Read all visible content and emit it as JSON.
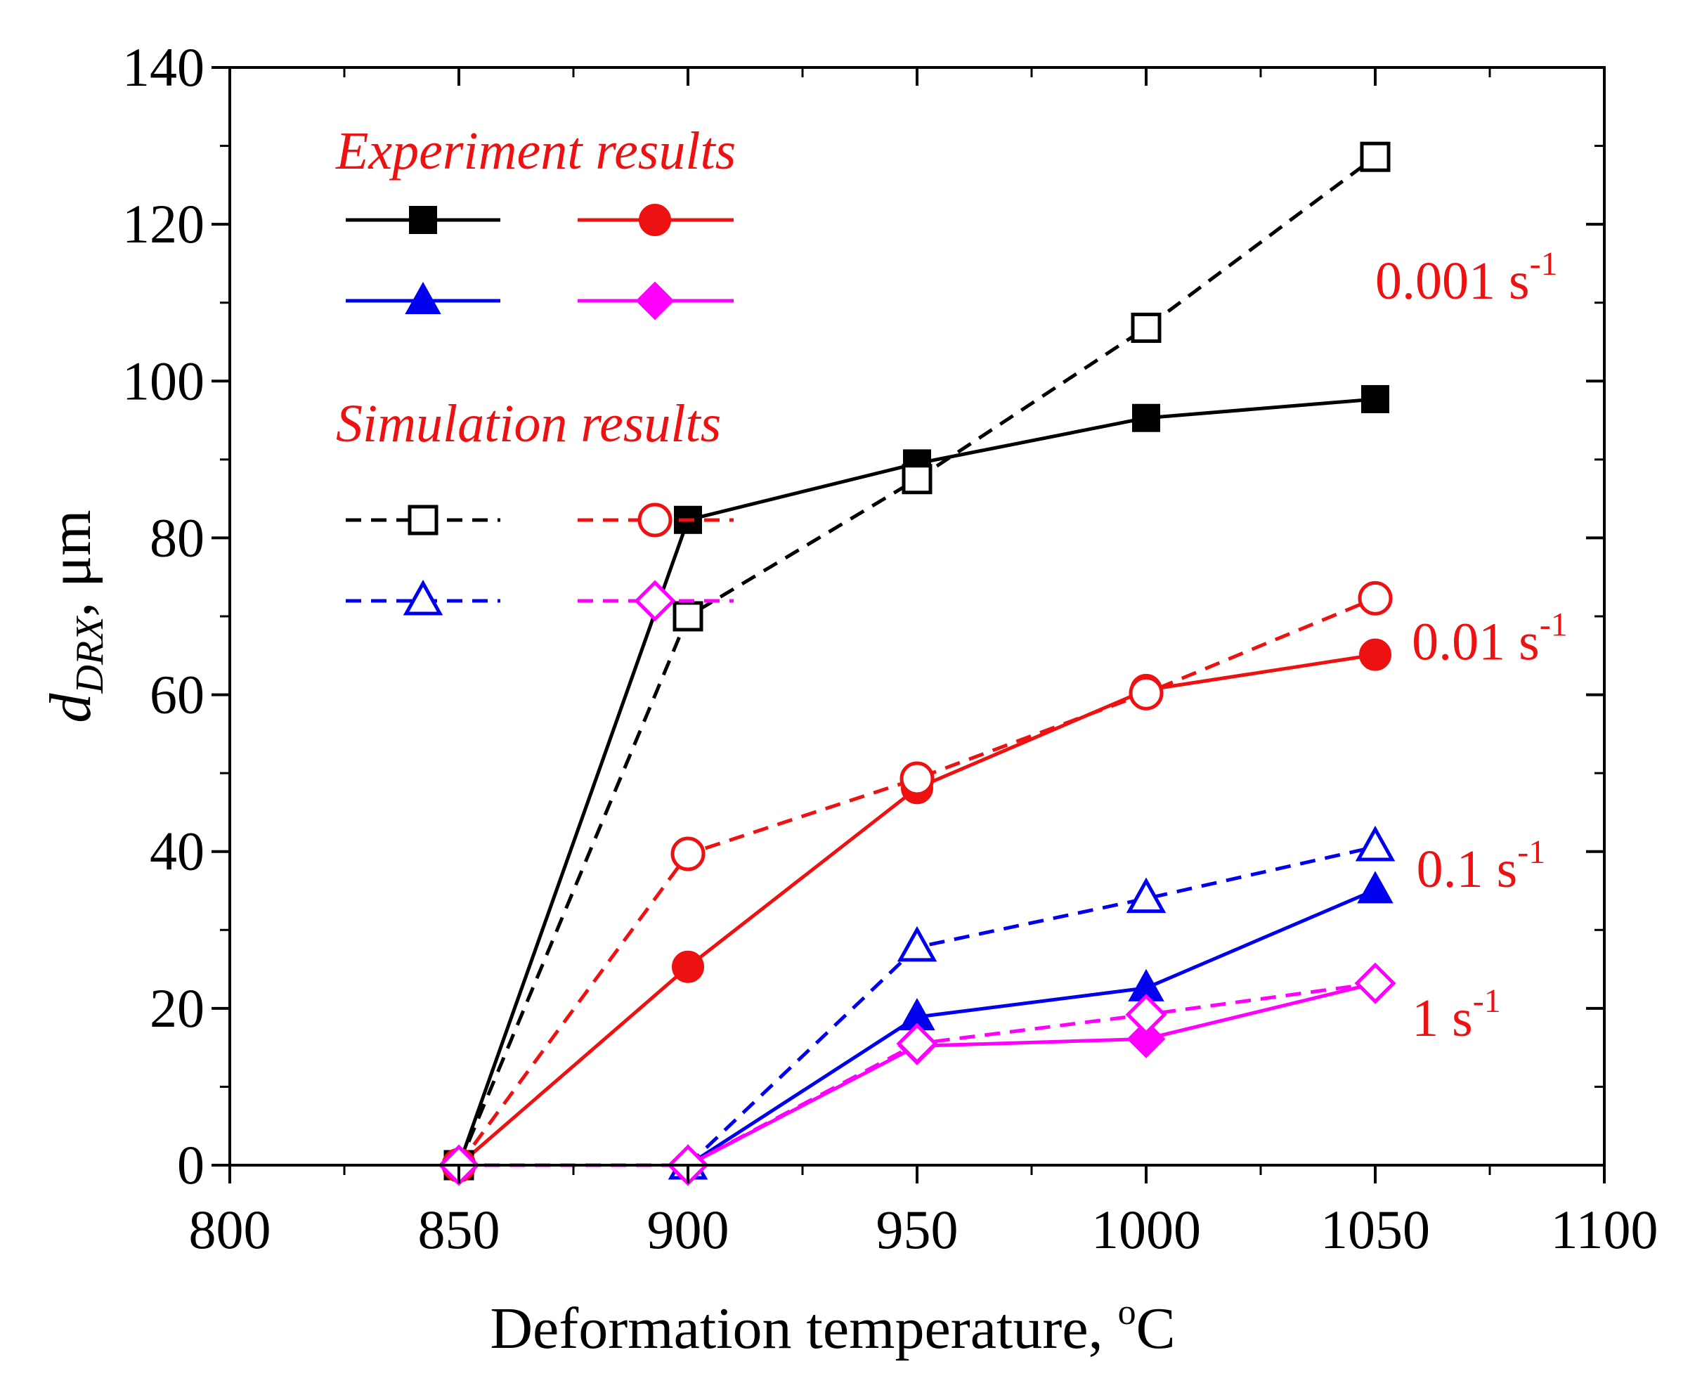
{
  "chart_data": {
    "type": "line",
    "xlabel": "Deformation temperature, ",
    "xlabel_unit_sup": "o",
    "xlabel_unit": "C",
    "ylabel_main": "d",
    "ylabel_sub": "DRX",
    "ylabel_unit": ", μm",
    "xlim": [
      800,
      1100
    ],
    "ylim": [
      0,
      140
    ],
    "xticks": [
      800,
      850,
      900,
      950,
      1000,
      1050,
      1100
    ],
    "yticks": [
      0,
      20,
      40,
      60,
      80,
      100,
      120,
      140
    ],
    "legend": {
      "experiment_title": "Experiment results",
      "simulation_title": "Simulation results",
      "placement": "top-left"
    },
    "series": [
      {
        "name": "Experiment 0.001 s-1",
        "group": "experiment",
        "color": "#000000",
        "marker": "square",
        "filled": true,
        "dashed": false,
        "x": [
          850,
          900,
          950,
          1000,
          1050
        ],
        "y": [
          0,
          82.3,
          89.5,
          95.3,
          97.7
        ]
      },
      {
        "name": "Experiment 0.01 s-1",
        "group": "experiment",
        "color": "#ee1111",
        "marker": "circle",
        "filled": true,
        "dashed": false,
        "x": [
          850,
          900,
          950,
          1000,
          1050
        ],
        "y": [
          0,
          25.3,
          48.1,
          60.6,
          65.1
        ]
      },
      {
        "name": "Experiment 0.1 s-1",
        "group": "experiment",
        "color": "#0000ee",
        "marker": "triangle",
        "filled": true,
        "dashed": false,
        "x": [
          900,
          950,
          1000,
          1050
        ],
        "y": [
          0,
          18.9,
          22.6,
          35.1
        ]
      },
      {
        "name": "Experiment 1 s-1",
        "group": "experiment",
        "color": "#ff00ff",
        "marker": "diamond",
        "filled": true,
        "dashed": false,
        "x": [
          900,
          950,
          1000,
          1050
        ],
        "y": [
          0,
          15.2,
          16.1,
          23.2
        ]
      },
      {
        "name": "Simulation 0.001 s-1",
        "group": "simulation",
        "color": "#000000",
        "marker": "square",
        "filled": false,
        "dashed": true,
        "x": [
          850,
          900,
          950,
          1000,
          1050
        ],
        "y": [
          0,
          70.0,
          87.5,
          106.8,
          128.6
        ]
      },
      {
        "name": "Simulation 0.01 s-1",
        "group": "simulation",
        "color": "#ee1111",
        "marker": "circle",
        "filled": false,
        "dashed": true,
        "x": [
          850,
          900,
          950,
          1000,
          1050
        ],
        "y": [
          0,
          39.7,
          49.3,
          60.2,
          72.3
        ]
      },
      {
        "name": "Simulation 0.1 s-1",
        "group": "simulation",
        "color": "#0000ee",
        "marker": "triangle",
        "filled": false,
        "dashed": true,
        "x": [
          900,
          950,
          1000,
          1050
        ],
        "y": [
          0,
          27.8,
          34.0,
          40.6
        ]
      },
      {
        "name": "Simulation 1 s-1",
        "group": "simulation",
        "color": "#ff00ff",
        "marker": "diamond",
        "filled": false,
        "dashed": true,
        "x": [
          850,
          900,
          950,
          1000,
          1050
        ],
        "y": [
          0,
          0,
          15.5,
          19.2,
          23.2
        ]
      }
    ],
    "annotations": [
      {
        "base": "0.001 s",
        "exp": "-1",
        "color": "#ee1111",
        "x": 1050,
        "y": 113
      },
      {
        "base": "0.01 s",
        "exp": "-1",
        "color": "#ee1111",
        "x": 1058,
        "y": 67
      },
      {
        "base": "0.1 s",
        "exp": "-1",
        "color": "#ee1111",
        "x": 1059,
        "y": 38
      },
      {
        "base": "1 s",
        "exp": "-1",
        "color": "#ee1111",
        "x": 1058,
        "y": 19
      }
    ]
  }
}
